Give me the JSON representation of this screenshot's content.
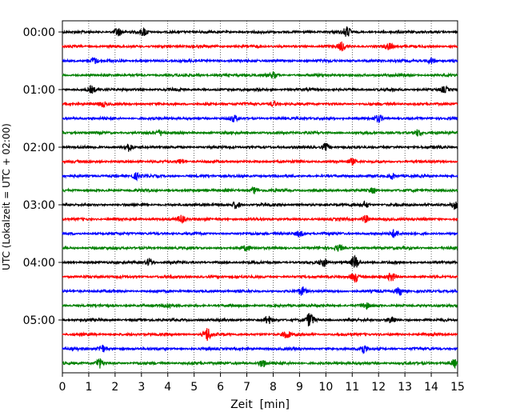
{
  "chart_data": {
    "type": "line",
    "xlabel": "Zeit  [min]",
    "ylabel": "UTC (Lokalzeit = UTC + 02:00)",
    "xlim": [
      0,
      15
    ],
    "x_ticks": [
      0,
      1,
      2,
      3,
      4,
      5,
      6,
      7,
      8,
      9,
      10,
      11,
      12,
      13,
      14,
      15
    ],
    "x_tick_labels": [
      "0",
      "1",
      "2",
      "3",
      "4",
      "5",
      "6",
      "7",
      "8",
      "9",
      "10",
      "11",
      "12",
      "13",
      "14",
      "15"
    ],
    "y_tick_labels": [
      "00:00",
      "01:00",
      "02:00",
      "03:00",
      "04:00",
      "05:00"
    ],
    "grid": "vertical-dotted",
    "line_minutes": 15,
    "row_colors": [
      "#000000",
      "#ff0000",
      "#0000ff",
      "#008000"
    ],
    "rows": [
      {
        "start": "00:00",
        "color": "#000000"
      },
      {
        "start": "00:15",
        "color": "#ff0000"
      },
      {
        "start": "00:30",
        "color": "#0000ff"
      },
      {
        "start": "00:45",
        "color": "#008000"
      },
      {
        "start": "01:00",
        "color": "#000000"
      },
      {
        "start": "01:15",
        "color": "#ff0000"
      },
      {
        "start": "01:30",
        "color": "#0000ff"
      },
      {
        "start": "01:45",
        "color": "#008000"
      },
      {
        "start": "02:00",
        "color": "#000000"
      },
      {
        "start": "02:15",
        "color": "#ff0000"
      },
      {
        "start": "02:30",
        "color": "#0000ff"
      },
      {
        "start": "02:45",
        "color": "#008000"
      },
      {
        "start": "03:00",
        "color": "#000000"
      },
      {
        "start": "03:15",
        "color": "#ff0000"
      },
      {
        "start": "03:30",
        "color": "#0000ff"
      },
      {
        "start": "03:45",
        "color": "#008000"
      },
      {
        "start": "04:00",
        "color": "#000000"
      },
      {
        "start": "04:15",
        "color": "#ff0000"
      },
      {
        "start": "04:30",
        "color": "#0000ff"
      },
      {
        "start": "04:45",
        "color": "#008000"
      },
      {
        "start": "05:00",
        "color": "#000000"
      },
      {
        "start": "05:15",
        "color": "#ff0000"
      },
      {
        "start": "05:30",
        "color": "#0000ff"
      },
      {
        "start": "05:45",
        "color": "#008000"
      }
    ],
    "bursts": [
      [
        [
          2.1,
          1.5
        ],
        [
          3.1,
          1.5
        ],
        [
          10.8,
          1.8
        ]
      ],
      [
        [
          10.6,
          1.5
        ],
        [
          12.4,
          1.2
        ]
      ],
      [
        [
          1.2,
          1.2
        ],
        [
          14.0,
          1.2
        ]
      ],
      [
        [
          8.0,
          1.0
        ]
      ],
      [
        [
          1.1,
          1.2
        ],
        [
          14.5,
          1.0
        ]
      ],
      [
        [
          1.5,
          1.0
        ],
        [
          8.0,
          1.0
        ]
      ],
      [
        [
          6.5,
          1.0
        ],
        [
          12.0,
          1.2
        ]
      ],
      [
        [
          3.7,
          1.0
        ],
        [
          13.5,
          1.2
        ]
      ],
      [
        [
          2.5,
          1.5
        ],
        [
          10.0,
          1.5
        ]
      ],
      [
        [
          4.5,
          1.0
        ],
        [
          11.0,
          1.0
        ]
      ],
      [
        [
          2.8,
          1.2
        ],
        [
          12.5,
          1.2
        ]
      ],
      [
        [
          7.3,
          1.2
        ],
        [
          11.8,
          1.0
        ]
      ],
      [
        [
          6.6,
          1.5
        ],
        [
          11.5,
          1.2
        ],
        [
          14.9,
          1.5
        ]
      ],
      [
        [
          4.5,
          1.5
        ],
        [
          11.5,
          1.5
        ]
      ],
      [
        [
          9.0,
          1.2
        ],
        [
          12.6,
          1.5
        ]
      ],
      [
        [
          7.0,
          1.0
        ],
        [
          10.5,
          1.2
        ]
      ],
      [
        [
          3.3,
          1.5
        ],
        [
          9.9,
          1.5
        ],
        [
          11.1,
          2.5
        ]
      ],
      [
        [
          11.1,
          2.0
        ],
        [
          12.5,
          1.5
        ]
      ],
      [
        [
          9.1,
          1.5
        ],
        [
          12.8,
          1.5
        ]
      ],
      [
        [
          4.0,
          1.0
        ],
        [
          11.5,
          1.0
        ]
      ],
      [
        [
          7.8,
          1.5
        ],
        [
          9.4,
          2.6
        ],
        [
          12.5,
          1.5
        ]
      ],
      [
        [
          5.5,
          2.5
        ],
        [
          8.5,
          1.5
        ]
      ],
      [
        [
          1.5,
          1.5
        ],
        [
          11.4,
          1.8
        ]
      ],
      [
        [
          1.4,
          1.8
        ],
        [
          7.6,
          1.5
        ],
        [
          14.9,
          1.5
        ]
      ]
    ]
  }
}
